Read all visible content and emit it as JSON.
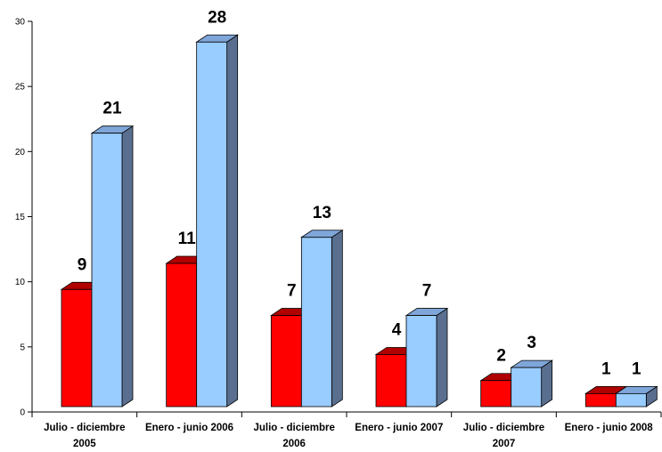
{
  "chart_data": {
    "type": "bar",
    "style": "3d-clustered-bar",
    "title": "",
    "xlabel": "",
    "ylabel": "",
    "ylim": [
      0,
      30
    ],
    "yticks": [
      0,
      5,
      10,
      15,
      20,
      25,
      30
    ],
    "grid": false,
    "legend": "none",
    "categories": [
      [
        "Julio - diciembre",
        "2005"
      ],
      [
        "Enero - junio 2006"
      ],
      [
        "Julio - diciembre",
        "2006"
      ],
      [
        "Enero - junio 2007"
      ],
      [
        "Julio - diciembre",
        "2007"
      ],
      [
        "Enero - junio 2008"
      ]
    ],
    "series": [
      {
        "values": [
          9,
          11,
          7,
          4,
          2,
          1
        ],
        "color": "#ff0000"
      },
      {
        "values": [
          21,
          28,
          13,
          7,
          3,
          1
        ],
        "color": "#99ccff"
      }
    ],
    "data_labels": [
      [
        "9",
        "11",
        "7",
        "4",
        "2",
        "1"
      ],
      [
        "21",
        "28",
        "13",
        "7",
        "3",
        "1"
      ]
    ]
  }
}
